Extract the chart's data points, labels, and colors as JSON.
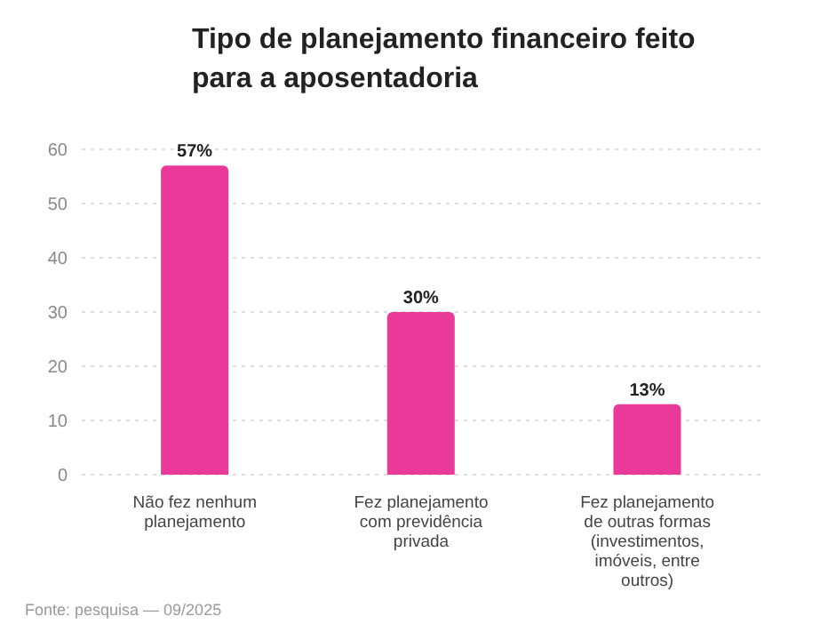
{
  "chart_data": {
    "type": "bar",
    "title": "Tipo de planejamento financeiro feito para a aposentadoria",
    "categories": [
      "Não fez nenhum planejamento",
      "Fez planejamento com previdência privada",
      "Fez planejamento de outras formas (investimentos, imóveis, entre outros)"
    ],
    "values": [
      57,
      30,
      13
    ],
    "value_labels": [
      "57%",
      "30%",
      "13%"
    ],
    "color": "#e93a9a",
    "ylim": [
      0,
      60
    ],
    "yticks": [
      0,
      10,
      20,
      30,
      40,
      50,
      60
    ],
    "grid": "y",
    "annotations": [
      "Fonte: pesquisa — 09/2025"
    ]
  }
}
